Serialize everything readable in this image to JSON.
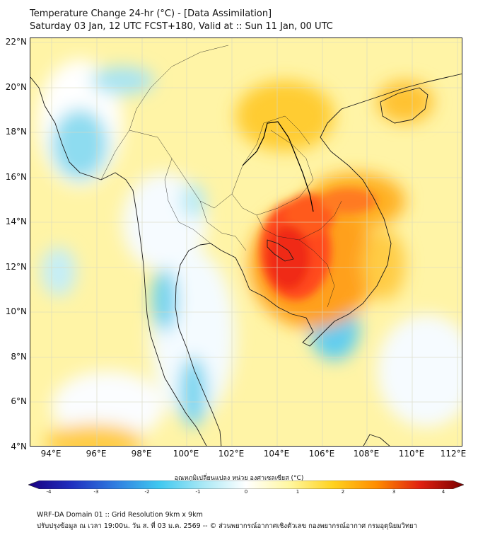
{
  "header": {
    "title_line1": "Temperature Change 24-hr (°C) - [Data Assimilation]",
    "title_line2": "Saturday 03 Jan, 12 UTC FCST+180, Valid at :: Sun 11 Jan, 00 UTC"
  },
  "map": {
    "lat_labels": [
      "22°N",
      "20°N",
      "18°N",
      "16°N",
      "14°N",
      "12°N",
      "10°N",
      "8°N",
      "6°N",
      "4°N"
    ],
    "lon_labels": [
      "94°E",
      "96°E",
      "98°E",
      "100°E",
      "102°E",
      "104°E",
      "106°E",
      "108°E",
      "110°E",
      "112°E"
    ]
  },
  "colorbar": {
    "label": "อุณหภูมิเปลี่ยนแปลง หน่วย องศาเซลเซียส (°C)",
    "ticks": [
      "-4",
      "-3",
      "-2",
      "-1",
      "0",
      "1",
      "2",
      "3",
      "4"
    ],
    "colors": [
      "#1a0080",
      "#2030c0",
      "#2f7de0",
      "#3fc8f0",
      "#a8e8f5",
      "#ffffff",
      "#fff7a0",
      "#ffd21e",
      "#ff8c00",
      "#e02010",
      "#7a0000"
    ]
  },
  "footer": {
    "line1": "WRF-DA Domain 01 :: Grid Resolution 9km x 9km",
    "line2": "ปรับปรุงข้อมูล ณ เวลา 19:00น. วัน ส. ที่ 03 ม.ค. 2569 -- © ส่วนพยากรณ์อากาศเชิงตัวเลข กองพยากรณ์อากาศ กรมอุตุนิยมวิทยา"
  }
}
